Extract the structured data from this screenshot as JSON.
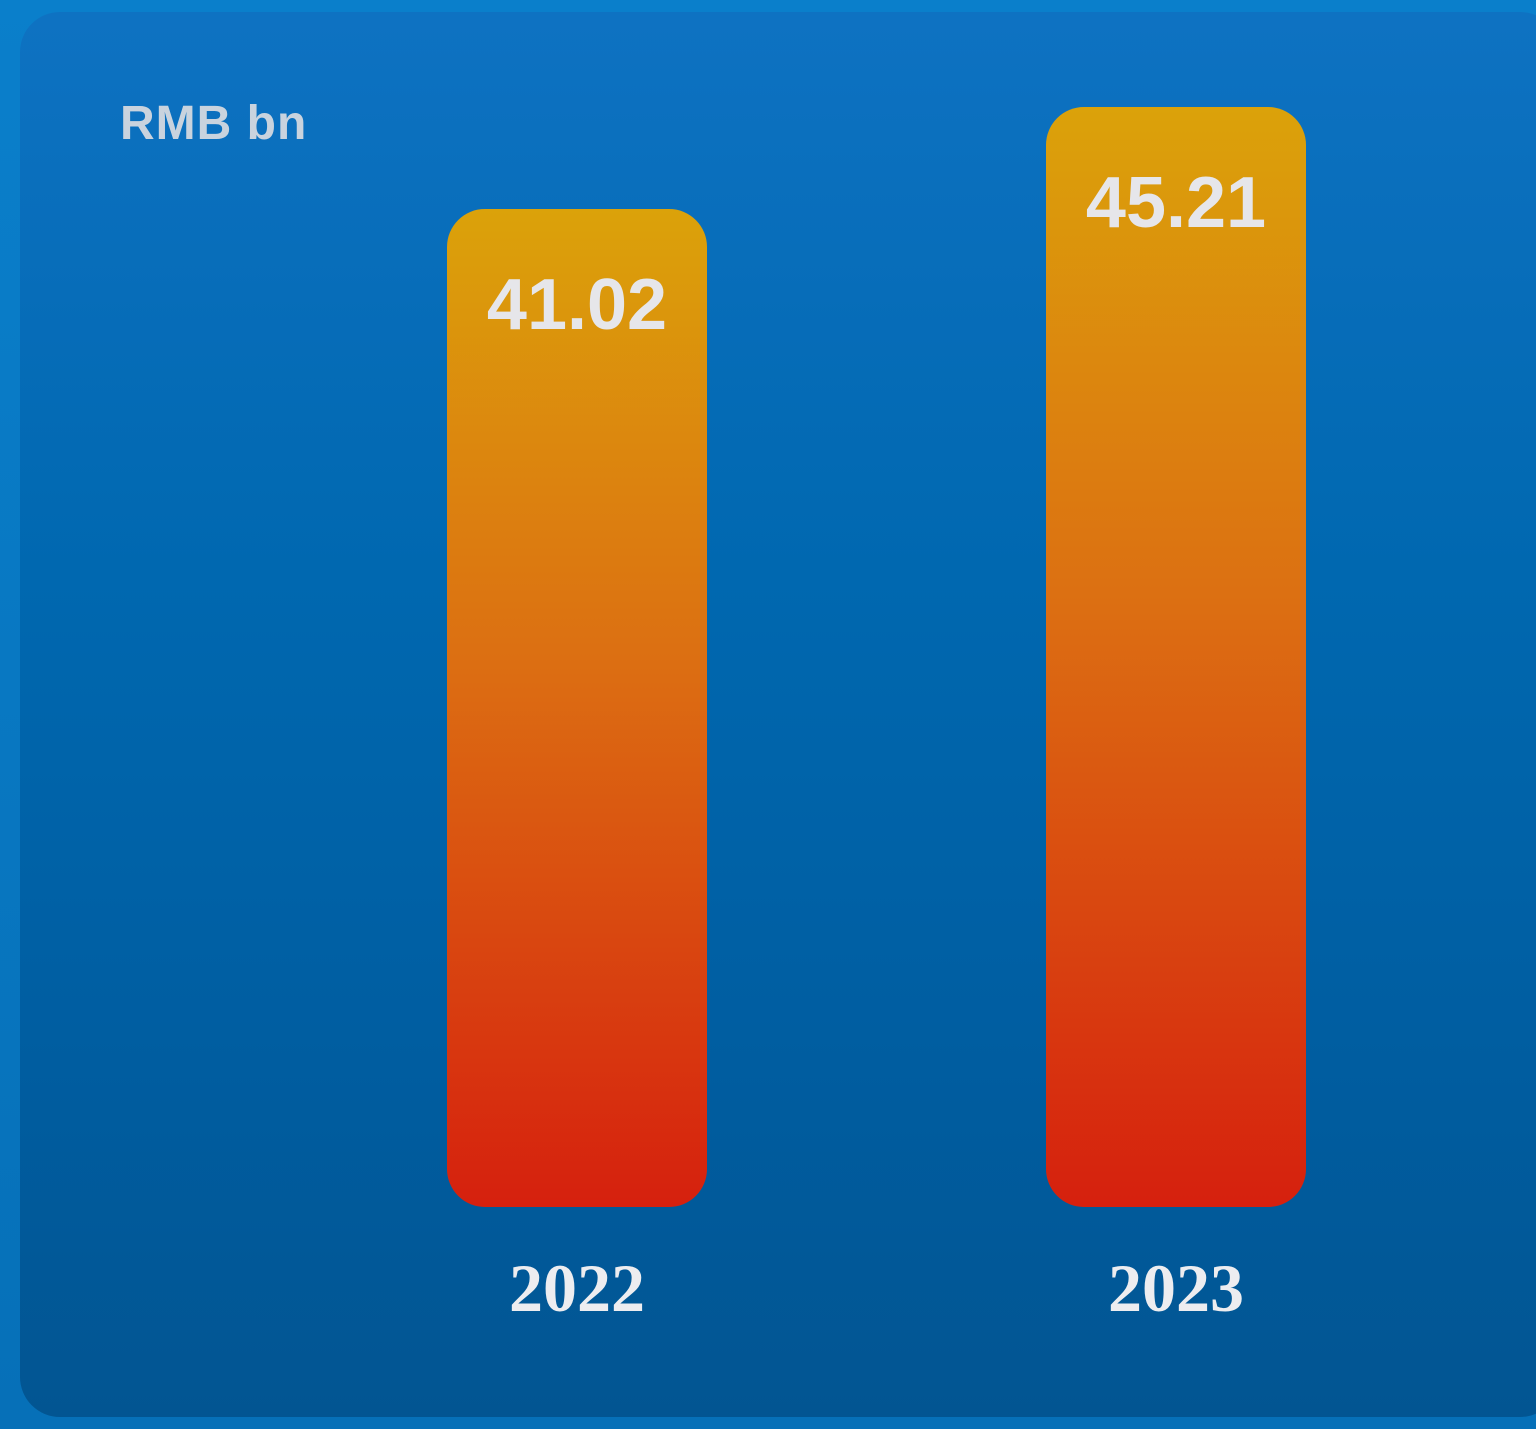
{
  "chart_data": {
    "type": "bar",
    "unit_label": "RMB bn",
    "categories": [
      "2022",
      "2023"
    ],
    "values": [
      41.02,
      45.21
    ],
    "value_labels": [
      "41.02",
      "45.21"
    ],
    "grid": false,
    "legend": "none",
    "colors": {
      "bar_top": "#dba20a",
      "bar_bottom": "#d6200e",
      "background": "#0068b0"
    }
  }
}
